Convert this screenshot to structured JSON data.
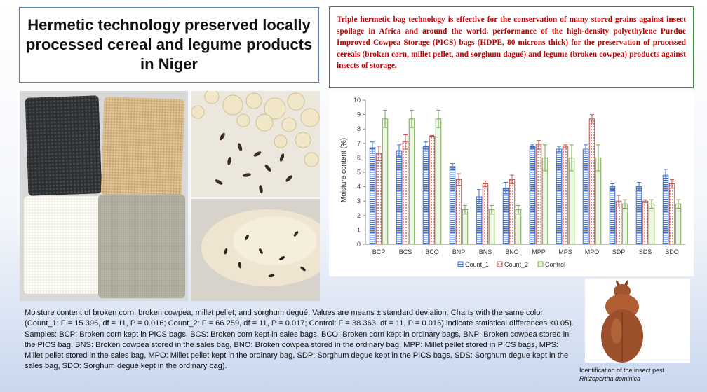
{
  "title": "Hermetic technology preserved locally processed cereal and legume products in Niger",
  "abstract": "Triple hermetic bag technology is effective for the conservation of many stored grains against insect spoilage in Africa and around the world. performance of the high-density polyethylene Purdue Improved Cowpea Storage (PICS) bags (HDPE, 80 microns thick) for the preservation of processed cereals (broken corn, millet pellet, and sorghum dagué) and legume (broken cowpea) products against insects of storage.",
  "caption": "Moisture content of broken corn, broken cowpea, millet pellet, and sorghum degué. Values are means ± standard deviation. Charts with the same color (Count_1: F = 15.396, df = 11, P = 0.016; Count_2: F = 66.259, df = 11, P = 0.017; Control: F = 38.363, df = 11, P = 0.016) indicate statistical differences <0.05). Samples: BCP: Broken corn kept in PICS bags, BCS: Broken corn kept in sales bags, BCO: Broken corn kept in ordinary bags, BNP: Broken cowpea stored in the PICS bag, BNS: Broken cowpea stored in the sales bag, BNO: Broken cowpea stored in the ordinary bag, MPP: Millet pellet stored in PICS bags, MPS: Millet pellet stored in the sales bag, MPO: Millet pellet kept in the ordinary bag, SDP: Sorghum degue kept in the PICS bags, SDS: Sorghum degue kept in the sales bag, SDO: Sorghum degué kept in the ordinary bag).",
  "insect": {
    "label": "Identification of the insect pest",
    "species": "Rhizopertha dominica"
  },
  "chart_data": {
    "type": "bar",
    "ylabel": "Moisture content (%)",
    "xlabel": "",
    "ylim": [
      0,
      10
    ],
    "yticks": [
      0,
      1,
      2,
      3,
      4,
      5,
      6,
      7,
      8,
      9,
      10
    ],
    "legend_position": "bottom",
    "grid": false,
    "categories": [
      "BCP",
      "BCS",
      "BCO",
      "BNP",
      "BNS",
      "BNO",
      "MPP",
      "MPS",
      "MPO",
      "SDP",
      "SDS",
      "SDO"
    ],
    "series": [
      {
        "name": "Count_1",
        "color": "#4472c4",
        "style": "striped",
        "values": [
          6.7,
          6.5,
          6.8,
          5.4,
          3.3,
          3.9,
          6.8,
          6.6,
          6.6,
          4.0,
          4.0,
          4.8
        ],
        "errors": [
          0.4,
          0.4,
          0.3,
          0.2,
          0.5,
          0.4,
          0.1,
          0.2,
          0.3,
          0.2,
          0.3,
          0.4
        ]
      },
      {
        "name": "Count_2",
        "color": "#c0504d",
        "style": "dotted",
        "values": [
          6.3,
          7.1,
          7.5,
          4.5,
          4.2,
          4.5,
          6.9,
          6.8,
          8.7,
          3.0,
          3.0,
          4.2
        ],
        "errors": [
          0.5,
          0.5,
          0.05,
          0.4,
          0.2,
          0.3,
          0.3,
          0.1,
          0.3,
          0.4,
          0.1,
          0.3
        ]
      },
      {
        "name": "Control",
        "color": "#70ad47",
        "style": "plain",
        "values": [
          8.7,
          8.7,
          8.7,
          2.4,
          2.4,
          2.4,
          6.0,
          6.0,
          6.0,
          2.8,
          2.8,
          2.8
        ],
        "errors": [
          0.6,
          0.6,
          0.6,
          0.3,
          0.3,
          0.3,
          0.9,
          0.9,
          0.9,
          0.3,
          0.3,
          0.3
        ]
      }
    ]
  }
}
